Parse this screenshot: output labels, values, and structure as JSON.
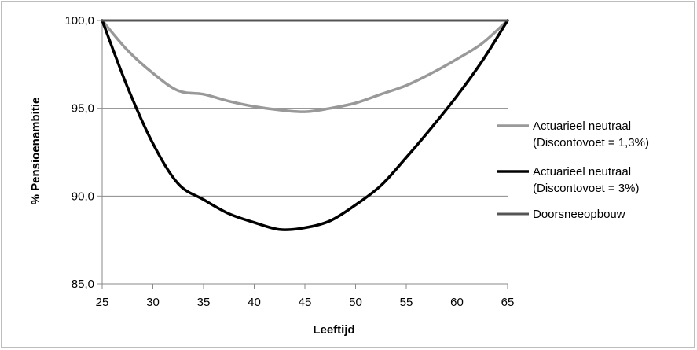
{
  "chart_data": {
    "type": "line",
    "title": "",
    "xlabel": "Leeftijd",
    "ylabel": "% Pensioenambitie",
    "xlim": [
      25,
      65
    ],
    "ylim": [
      85,
      100
    ],
    "x_ticks": [
      "25",
      "30",
      "35",
      "40",
      "45",
      "50",
      "55",
      "60",
      "65"
    ],
    "y_ticks": [
      "100,0",
      "95,0",
      "90,0",
      "85,0"
    ],
    "grid": "horizontal",
    "legend_position": "right",
    "x": [
      25,
      27.5,
      30,
      32.5,
      35,
      37.5,
      40,
      42.5,
      45,
      47.5,
      50,
      52.5,
      55,
      57.5,
      60,
      62.5,
      65
    ],
    "series": [
      {
        "name_lines": [
          "Actuarieel neutraal",
          "(Discontovoet = 1,3%)"
        ],
        "color": "#999999",
        "values": [
          100.0,
          98.3,
          97.0,
          96.0,
          95.8,
          95.4,
          95.1,
          94.9,
          94.8,
          95.0,
          95.3,
          95.8,
          96.3,
          97.0,
          97.8,
          98.7,
          100.0
        ]
      },
      {
        "name_lines": [
          "Actuarieel neutraal",
          "(Discontovoet = 3%)"
        ],
        "color": "#000000",
        "values": [
          100.0,
          96.2,
          93.0,
          90.7,
          89.8,
          89.0,
          88.5,
          88.1,
          88.2,
          88.6,
          89.5,
          90.6,
          92.2,
          93.9,
          95.7,
          97.7,
          100.0
        ]
      },
      {
        "name_lines": [
          "Doorsneeopbouw"
        ],
        "color": "#555555",
        "values": [
          100.0,
          100.0,
          100.0,
          100.0,
          100.0,
          100.0,
          100.0,
          100.0,
          100.0,
          100.0,
          100.0,
          100.0,
          100.0,
          100.0,
          100.0,
          100.0,
          100.0
        ]
      }
    ]
  }
}
